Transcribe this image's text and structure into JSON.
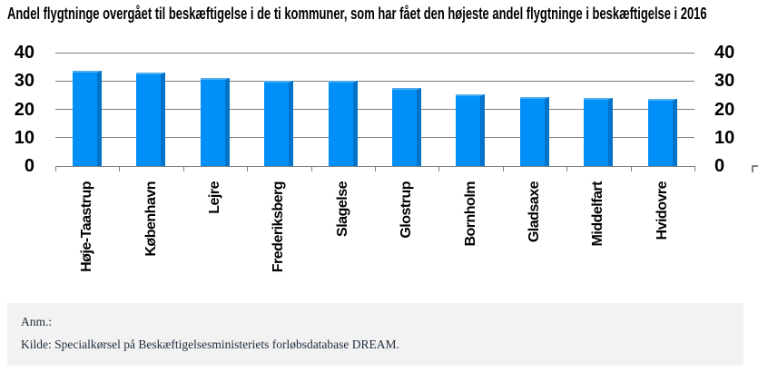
{
  "chart_data": {
    "type": "bar",
    "title": "Andel flygtninge overgået til beskæftigelse i de ti kommuner, som har fået den højeste andel flygtninge i beskæftigelse i 2016",
    "categories": [
      "Høje-Taastrup",
      "København",
      "Lejre",
      "Frederiksberg",
      "Slagelse",
      "Glostrup",
      "Bornholm",
      "Gladsaxe",
      "Middelfart",
      "Hvidovre"
    ],
    "values": [
      33.5,
      33,
      31,
      30,
      30,
      27.4,
      25.4,
      24.4,
      23.9,
      23.8
    ],
    "xlabel": "",
    "ylabel": "",
    "ylim": [
      0,
      40
    ],
    "yticks": [
      40,
      30,
      20,
      10,
      0
    ],
    "grid": true,
    "legend": "none",
    "axis_labels_position": "both-sides",
    "colors": {
      "bar_fill": "#0190f8",
      "bar_side_3d": "#0173c8",
      "bar_top_3d": "#4facee",
      "gridline": "#7f7f7f",
      "text": "#000000",
      "footer_background": "#f2f2f2",
      "footer_text": "#1f2d3d"
    }
  },
  "footer": {
    "note_label": "Anm.:",
    "source": "Kilde: Specialkørsel på Beskæftigelsesministeriets forløbsdatabase DREAM."
  }
}
